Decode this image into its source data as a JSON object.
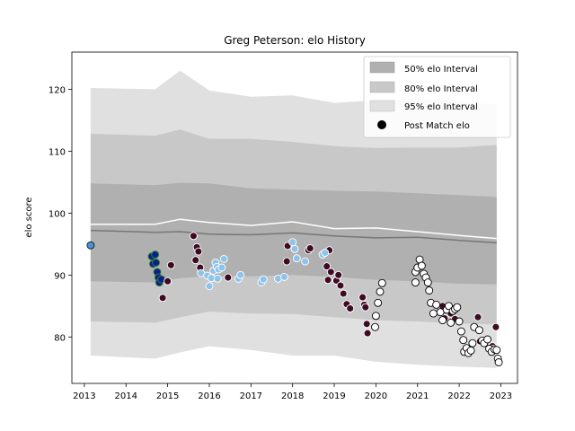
{
  "chart_data": {
    "type": "scatter",
    "title": "Greg Peterson: elo History",
    "xlabel": "",
    "ylabel": "elo score",
    "xlim": [
      2012.7,
      2023.4
    ],
    "ylim": [
      72.5,
      126
    ],
    "x_ticks": [
      2013,
      2014,
      2015,
      2016,
      2017,
      2018,
      2019,
      2020,
      2021,
      2022,
      2023
    ],
    "x_tick_labels": [
      "2013",
      "2014",
      "2015",
      "2016",
      "2017",
      "2018",
      "2019",
      "2020",
      "2021",
      "2022",
      "2023"
    ],
    "y_ticks": [
      80,
      90,
      100,
      110,
      120
    ],
    "y_tick_labels": [
      "80",
      "90",
      "100",
      "110",
      "120"
    ],
    "grid": false,
    "legend_position": "top-right",
    "legend": [
      {
        "label": "50% elo Interval",
        "kind": "band",
        "color": "#b0b0b0"
      },
      {
        "label": "80% elo Interval",
        "kind": "band",
        "color": "#c8c8c8"
      },
      {
        "label": "95% elo Interval",
        "kind": "band",
        "color": "#e0e0e0"
      },
      {
        "label": "Post Match elo",
        "kind": "marker",
        "color": "#000000"
      }
    ],
    "band_x": [
      2013.15,
      2014.7,
      2015.3,
      2016.0,
      2017.0,
      2018.0,
      2019.0,
      2020.0,
      2021.0,
      2022.0,
      2022.9
    ],
    "center_median": [
      97.2,
      96.9,
      97.0,
      96.6,
      96.5,
      96.8,
      96.3,
      96.0,
      96.1,
      95.6,
      95.2
    ],
    "center_mean": [
      98.2,
      98.2,
      99.0,
      98.5,
      98.0,
      98.6,
      97.5,
      97.6,
      97.0,
      96.4,
      95.9
    ],
    "band_50": {
      "lower": [
        89.0,
        88.8,
        89.5,
        89.8,
        89.8,
        90.0,
        89.7,
        89.2,
        89.0,
        88.6,
        88.5
      ],
      "upper": [
        104.8,
        104.5,
        104.9,
        104.8,
        104.0,
        103.8,
        103.6,
        103.5,
        103.2,
        102.9,
        102.6
      ]
    },
    "band_80": {
      "lower": [
        82.5,
        82.3,
        83.2,
        84.1,
        83.8,
        83.7,
        83.2,
        82.7,
        82.5,
        82.2,
        82.0
      ],
      "upper": [
        112.8,
        112.5,
        113.5,
        112.0,
        112.0,
        111.5,
        110.8,
        110.5,
        110.6,
        110.6,
        111.0
      ]
    },
    "band_95": {
      "lower": [
        77.0,
        76.5,
        77.5,
        78.5,
        77.9,
        77.0,
        77.0,
        76.0,
        75.5,
        75.2,
        75.0
      ],
      "upper": [
        120.2,
        120.0,
        123.0,
        119.8,
        118.8,
        119.0,
        117.8,
        118.2,
        118.5,
        118.0,
        117.5
      ]
    },
    "point_groups": [
      {
        "fill": "#4a90d9",
        "edge": "#1a1a1a",
        "points": [
          [
            2013.15,
            94.8
          ]
        ]
      },
      {
        "fill": "#0d1f8c",
        "edge": "#2e8b2e",
        "points": [
          [
            2014.62,
            93.0
          ],
          [
            2014.65,
            91.8
          ],
          [
            2014.7,
            93.3
          ],
          [
            2014.72,
            92.0
          ],
          [
            2014.75,
            90.5
          ],
          [
            2014.78,
            89.6
          ],
          [
            2014.8,
            88.8
          ],
          [
            2014.85,
            89.3
          ]
        ]
      },
      {
        "fill": "#3d0a22",
        "edge": "#ffffff",
        "points": [
          [
            2014.88,
            86.3
          ],
          [
            2015.0,
            89.0
          ],
          [
            2015.08,
            91.6
          ],
          [
            2015.62,
            96.3
          ],
          [
            2015.67,
            92.4
          ],
          [
            2015.7,
            94.5
          ],
          [
            2015.74,
            93.8
          ],
          [
            2015.78,
            91.2
          ],
          [
            2016.45,
            89.6
          ],
          [
            2017.88,
            94.7
          ],
          [
            2017.86,
            92.2
          ],
          [
            2018.38,
            94.0
          ],
          [
            2018.42,
            94.3
          ],
          [
            2018.82,
            91.4
          ],
          [
            2018.85,
            89.2
          ],
          [
            2018.88,
            94.0
          ],
          [
            2018.92,
            90.5
          ],
          [
            2019.05,
            89.1
          ],
          [
            2019.1,
            90.0
          ],
          [
            2019.15,
            88.3
          ],
          [
            2019.22,
            87.0
          ],
          [
            2019.3,
            85.3
          ],
          [
            2019.38,
            84.6
          ],
          [
            2019.68,
            86.4
          ],
          [
            2019.72,
            85.2
          ],
          [
            2019.75,
            84.8
          ],
          [
            2019.78,
            82.1
          ],
          [
            2019.8,
            80.6
          ],
          [
            2021.6,
            85.0
          ],
          [
            2021.65,
            83.0
          ],
          [
            2021.8,
            83.8
          ],
          [
            2021.9,
            82.9
          ],
          [
            2022.45,
            83.2
          ],
          [
            2022.5,
            79.3
          ],
          [
            2022.65,
            79.5
          ],
          [
            2022.75,
            77.8
          ],
          [
            2022.8,
            78.5
          ],
          [
            2022.82,
            78.1
          ],
          [
            2022.88,
            81.6
          ]
        ]
      },
      {
        "fill": "#8ec3ea",
        "edge": "#ffffff",
        "points": [
          [
            2015.8,
            90.3
          ],
          [
            2015.95,
            89.9
          ],
          [
            2016.0,
            88.2
          ],
          [
            2016.05,
            89.5
          ],
          [
            2016.1,
            90.7
          ],
          [
            2016.15,
            92.0
          ],
          [
            2016.18,
            91.3
          ],
          [
            2016.22,
            90.9
          ],
          [
            2016.3,
            91.2
          ],
          [
            2016.35,
            92.6
          ],
          [
            2016.2,
            89.4
          ],
          [
            2016.7,
            89.4
          ],
          [
            2016.75,
            90.0
          ],
          [
            2017.25,
            88.8
          ],
          [
            2017.3,
            89.3
          ],
          [
            2017.65,
            89.4
          ],
          [
            2017.8,
            89.7
          ],
          [
            2018.0,
            95.3
          ],
          [
            2018.05,
            94.2
          ],
          [
            2018.1,
            92.7
          ],
          [
            2018.3,
            92.2
          ],
          [
            2018.72,
            93.3
          ],
          [
            2018.78,
            93.6
          ]
        ]
      },
      {
        "fill": "#ffffff",
        "edge": "#000000",
        "points": [
          [
            2019.98,
            81.6
          ],
          [
            2020.0,
            83.4
          ],
          [
            2020.05,
            85.5
          ],
          [
            2020.1,
            87.3
          ],
          [
            2020.15,
            88.7
          ],
          [
            2020.95,
            88.8
          ],
          [
            2020.95,
            90.5
          ],
          [
            2021.0,
            91.2
          ],
          [
            2021.05,
            92.5
          ],
          [
            2021.1,
            91.5
          ],
          [
            2021.15,
            90.2
          ],
          [
            2021.2,
            89.6
          ],
          [
            2021.25,
            88.8
          ],
          [
            2021.28,
            87.5
          ],
          [
            2021.32,
            85.5
          ],
          [
            2021.38,
            83.8
          ],
          [
            2021.45,
            85.2
          ],
          [
            2021.55,
            84.0
          ],
          [
            2021.6,
            82.7
          ],
          [
            2021.7,
            84.4
          ],
          [
            2021.75,
            85.0
          ],
          [
            2021.8,
            82.3
          ],
          [
            2021.85,
            84.2
          ],
          [
            2021.9,
            84.5
          ],
          [
            2021.95,
            84.8
          ],
          [
            2022.0,
            82.5
          ],
          [
            2022.05,
            80.9
          ],
          [
            2022.1,
            79.5
          ],
          [
            2022.12,
            77.6
          ],
          [
            2022.18,
            78.2
          ],
          [
            2022.22,
            77.4
          ],
          [
            2022.28,
            77.8
          ],
          [
            2022.32,
            79.0
          ],
          [
            2022.36,
            81.6
          ],
          [
            2022.48,
            81.1
          ],
          [
            2022.55,
            79.4
          ],
          [
            2022.6,
            79.0
          ],
          [
            2022.68,
            79.6
          ],
          [
            2022.72,
            78.1
          ],
          [
            2022.78,
            77.6
          ],
          [
            2022.85,
            78.0
          ],
          [
            2022.9,
            77.9
          ],
          [
            2022.93,
            76.5
          ],
          [
            2022.95,
            75.9
          ]
        ]
      }
    ]
  }
}
